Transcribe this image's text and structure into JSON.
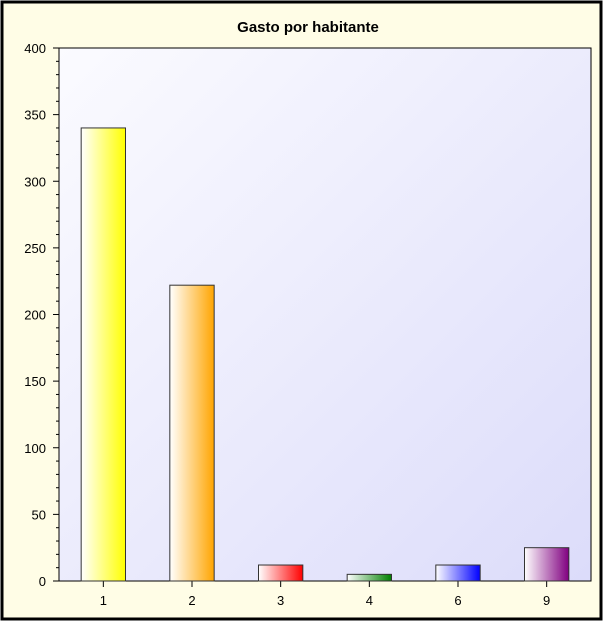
{
  "chart_data": {
    "type": "bar",
    "title": "Gasto por habitante",
    "xlabel": "",
    "ylabel": "",
    "categories": [
      "1",
      "2",
      "3",
      "4",
      "6",
      "9"
    ],
    "values": [
      340,
      222,
      12,
      5,
      12,
      25
    ],
    "ylim": [
      0,
      400
    ],
    "yticks": [
      0,
      50,
      100,
      150,
      200,
      250,
      300,
      350,
      400
    ],
    "grid": false,
    "legend": "none",
    "colors": {
      "background": "#fffde6",
      "plot_light": "#fbfbff",
      "plot_dark": "#dcdcfa",
      "bars": [
        "#ffff00",
        "#ffa500",
        "#ff0000",
        "#008000",
        "#0000ff",
        "#800080"
      ]
    }
  }
}
